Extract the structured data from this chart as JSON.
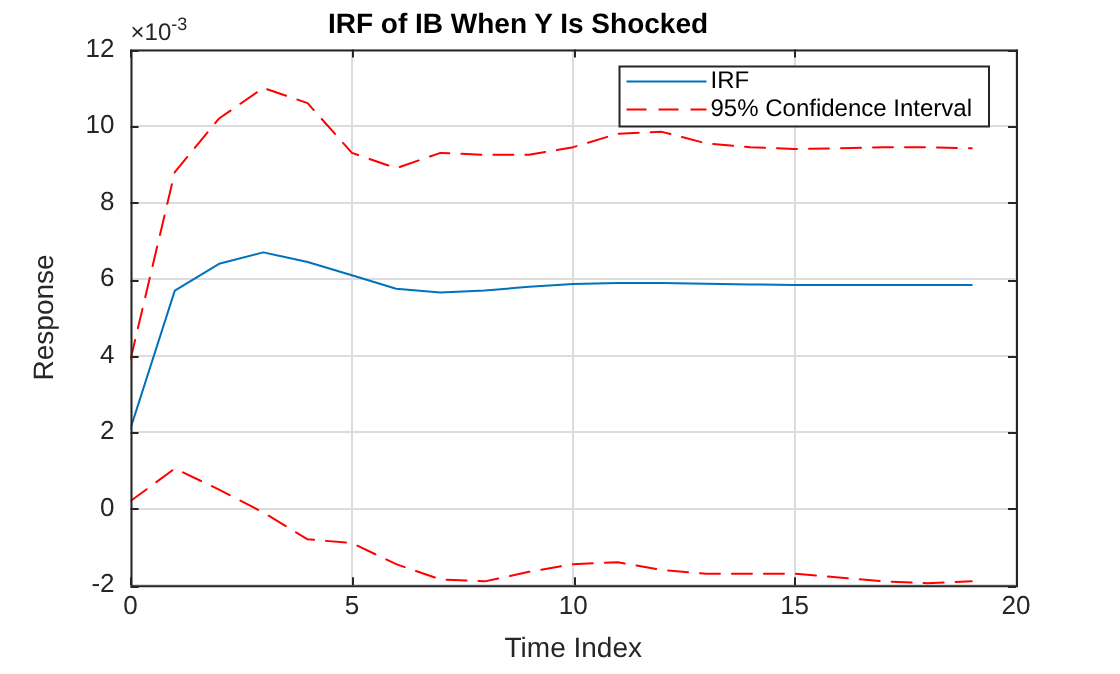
{
  "chart_data": {
    "type": "line",
    "title": "IRF of IB When Y Is Shocked",
    "xlabel": "Time Index",
    "ylabel": "Response",
    "annotations": [
      "×10$^{-3}$"
    ],
    "x": [
      0,
      1,
      2,
      3,
      4,
      5,
      6,
      7,
      8,
      9,
      10,
      11,
      12,
      13,
      14,
      15,
      16,
      17,
      18,
      19
    ],
    "series": [
      {
        "name": "IRF",
        "color": "#0072bd",
        "line_style": "solid",
        "values": [
          2.1,
          5.7,
          6.4,
          6.7,
          6.45,
          6.1,
          5.75,
          5.65,
          5.7,
          5.8,
          5.87,
          5.9,
          5.9,
          5.88,
          5.86,
          5.85,
          5.85,
          5.85,
          5.85,
          5.85
        ]
      },
      {
        "name": "95% Confidence Interval",
        "color": "#ff0000",
        "line_style": "dashed",
        "values": [
          3.9,
          8.8,
          10.2,
          11.0,
          10.6,
          9.3,
          8.9,
          9.3,
          9.25,
          9.25,
          9.45,
          9.8,
          9.85,
          9.55,
          9.45,
          9.4,
          9.42,
          9.45,
          9.45,
          9.42
        ]
      },
      {
        "color": "#ff0000",
        "line_style": "dashed",
        "values": [
          0.2,
          1.05,
          0.5,
          -0.1,
          -0.8,
          -0.9,
          -1.45,
          -1.85,
          -1.9,
          -1.65,
          -1.45,
          -1.4,
          -1.6,
          -1.7,
          -1.7,
          -1.7,
          -1.8,
          -1.9,
          -1.95,
          -1.9
        ]
      }
    ],
    "xlim": [
      0,
      20
    ],
    "xticks": [
      0,
      5,
      10,
      15,
      20
    ],
    "ylim": [
      -2,
      12
    ],
    "yticks": [
      -2,
      0,
      2,
      4,
      6,
      8,
      10,
      12
    ],
    "grid": true,
    "legend": "top right",
    "marker": "none"
  }
}
